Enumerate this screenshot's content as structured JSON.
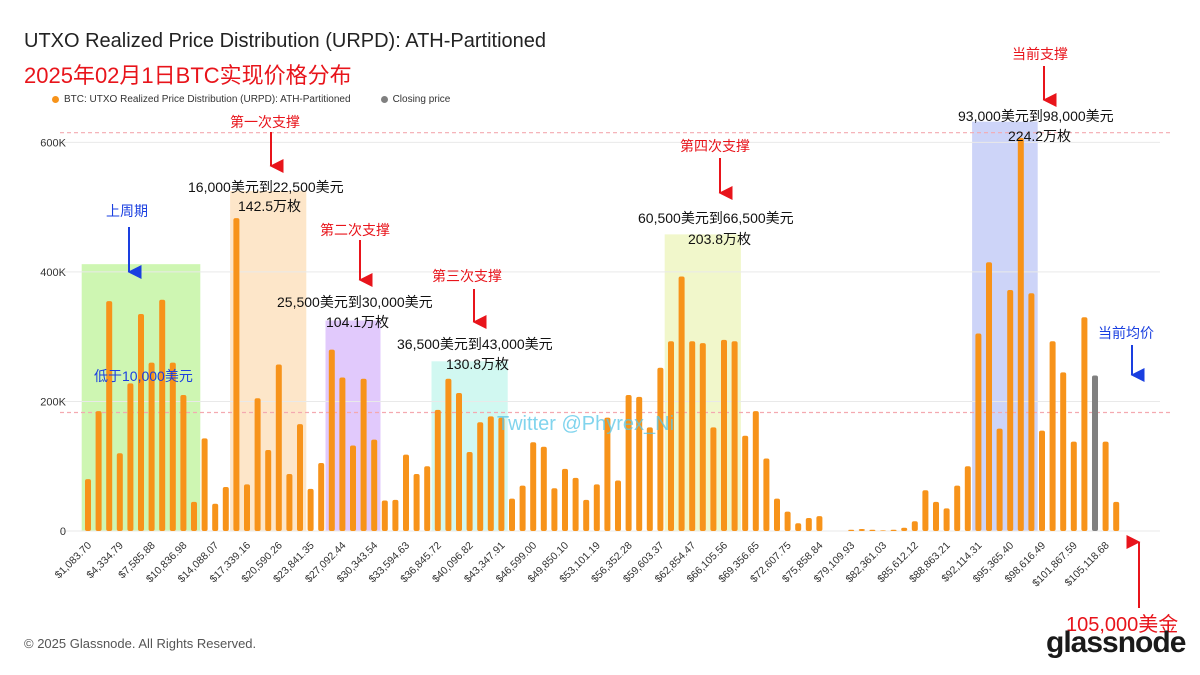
{
  "title": "UTXO Realized Price Distribution (URPD): ATH-Partitioned",
  "subtitle": "2025年02月1日BTC实现价格分布",
  "legend": [
    {
      "label": "BTC: UTXO Realized Price Distribution (URPD): ATH-Partitioned",
      "color": "#f7931a"
    },
    {
      "label": "Closing price",
      "color": "#808080"
    }
  ],
  "footer": "© 2025 Glassnode. All Rights Reserved.",
  "logo": "glassnode",
  "watermark": "Twitter @Phyrex_Ni",
  "colors": {
    "bar": "#f7931a",
    "closing": "#808080",
    "red": "#e8141b",
    "blue": "#1a3fe0"
  },
  "annotations": {
    "upper_cycle": "上周期",
    "below_10k": "低于10,000美元",
    "support1": {
      "label": "第一次支撑",
      "range": "16,000美元到22,500美元",
      "amount": "142.5万枚"
    },
    "support2": {
      "label": "第二次支撑",
      "range": "25,500美元到30,000美元",
      "amount": "104.1万枚"
    },
    "support3": {
      "label": "第三次支撑",
      "range": "36,500美元到43,000美元",
      "amount": "130.8万枚"
    },
    "support4": {
      "label": "第四次支撑",
      "range": "60,500美元到66,500美元",
      "amount": "203.8万枚"
    },
    "current_support": {
      "label": "当前支撑",
      "range": "93,000美元到98,000美元",
      "amount": "224.2万枚"
    },
    "current_avg": "当前均价",
    "price_105k": "105,000美金"
  },
  "chart_data": {
    "type": "bar",
    "title": "UTXO Realized Price Distribution (URPD): ATH-Partitioned",
    "ylim": [
      0,
      650000
    ],
    "yticks": [
      0,
      200000,
      400000,
      600000
    ],
    "ytick_labels": [
      "0",
      "200K",
      "400K",
      "600K"
    ],
    "xtick_labels": [
      "$1,083.70",
      "$4,334.79",
      "$7,585.88",
      "$10,836.98",
      "$14,088.07",
      "$17,339.16",
      "$20,590.26",
      "$23,841.35",
      "$27,092.44",
      "$30,343.54",
      "$33,594.63",
      "$36,845.72",
      "$40,096.82",
      "$43,347.91",
      "$46,599.00",
      "$49,850.10",
      "$53,101.19",
      "$56,352.28",
      "$59,603.37",
      "$62,854.47",
      "$66,105.56",
      "$69,356.65",
      "$72,607.75",
      "$75,858.84",
      "$79,109.93",
      "$82,361.03",
      "$85,612.12",
      "$88,863.21",
      "$92,114.31",
      "$95,365.40",
      "$98,616.49",
      "$101,867.59",
      "$105,118.68"
    ],
    "bin_start": 1083.7,
    "bin_width": 1083.7,
    "values": [
      80000,
      185000,
      355000,
      120000,
      228000,
      335000,
      260000,
      357000,
      260000,
      210000,
      45000,
      143000,
      42000,
      68000,
      483000,
      72000,
      205000,
      125000,
      257000,
      88000,
      165000,
      65000,
      105000,
      280000,
      237000,
      132000,
      235000,
      141000,
      47000,
      48000,
      118000,
      88000,
      100000,
      187000,
      235000,
      213000,
      122000,
      168000,
      177000,
      175000,
      50000,
      70000,
      137000,
      130000,
      66000,
      96000,
      82000,
      48000,
      72000,
      175000,
      78000,
      210000,
      207000,
      160000,
      252000,
      293000,
      393000,
      293000,
      290000,
      160000,
      295000,
      293000,
      147000,
      185000,
      112000,
      50000,
      30000,
      12000,
      20000,
      23000,
      0,
      0,
      2000,
      3000,
      2000,
      1000,
      2000,
      5000,
      15000,
      63000,
      45000,
      35000,
      70000,
      100000,
      305000,
      415000,
      158000,
      372000,
      607000,
      367000,
      155000,
      293000,
      245000,
      138000,
      330000,
      240000,
      138000,
      45000
    ],
    "closing_price_index": 95,
    "closing_price_label": "Closing price",
    "reference_lines": [
      615000,
      183000
    ],
    "highlight_ranges": [
      {
        "name": "上周期",
        "from": 0,
        "to": 10,
        "top": 412000,
        "color": "#c6f5a4"
      },
      {
        "name": "第一次支撑",
        "from": 14,
        "to": 20,
        "top": 525000,
        "color": "#fde2bf"
      },
      {
        "name": "第二次支撑",
        "from": 23,
        "to": 27,
        "top": 325000,
        "color": "#dcc0fb"
      },
      {
        "name": "第三次支撑",
        "from": 33,
        "to": 39,
        "top": 262000,
        "color": "#c9f7ef"
      },
      {
        "name": "第四次支撑",
        "from": 55,
        "to": 61,
        "top": 458000,
        "color": "#eef6c2"
      },
      {
        "name": "当前支撑",
        "from": 84,
        "to": 89,
        "top": 632000,
        "color": "#c4cdf7"
      }
    ]
  }
}
